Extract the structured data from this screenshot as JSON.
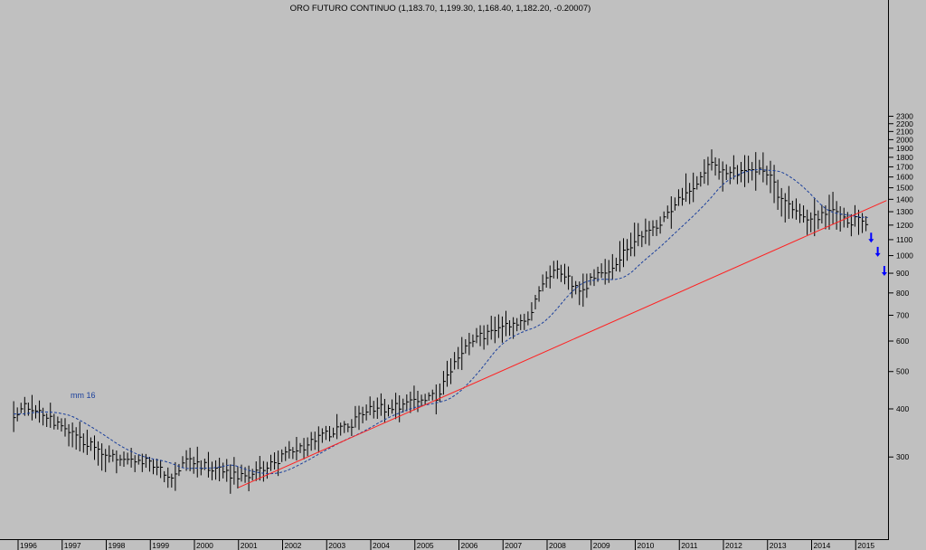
{
  "chart_data": {
    "type": "bar",
    "title": "ORO FUTURO CONTINUO (1,183.70, 1,199.30, 1,168.40, 1,182.20, -0.20007)",
    "y_scale": "log",
    "ylim": [
      230,
      2350
    ],
    "grid": false,
    "x_tick_labels": [
      "1996",
      "1997",
      "1998",
      "1999",
      "2000",
      "2001",
      "2002",
      "2003",
      "2004",
      "2005",
      "2006",
      "2007",
      "2008",
      "2009",
      "2010",
      "2011",
      "2012",
      "2013",
      "2014",
      "2015"
    ],
    "y_tick_labels": [
      "2300",
      "2200",
      "2100",
      "2000",
      "1900",
      "1800",
      "1700",
      "1600",
      "1500",
      "1400",
      "1300",
      "1200",
      "1100",
      "1000",
      "900",
      "800",
      "700",
      "600",
      "500",
      "400",
      "300"
    ],
    "annotations": {
      "moving_average_label": "mm 16"
    },
    "series": [
      {
        "kind": "monthly_hlc_bars",
        "color": "#000000",
        "anchors": [
          [
            1995.9,
            388
          ],
          [
            1996.1,
            405
          ],
          [
            1996.5,
            388
          ],
          [
            1997.0,
            360
          ],
          [
            1997.5,
            330
          ],
          [
            1998.0,
            300
          ],
          [
            1998.5,
            295
          ],
          [
            1999.0,
            290
          ],
          [
            1999.5,
            260
          ],
          [
            1999.8,
            300
          ],
          [
            2000.0,
            290
          ],
          [
            2000.5,
            280
          ],
          [
            2001.0,
            265
          ],
          [
            2001.5,
            275
          ],
          [
            2002.0,
            300
          ],
          [
            2002.5,
            320
          ],
          [
            2003.0,
            345
          ],
          [
            2003.5,
            360
          ],
          [
            2004.0,
            405
          ],
          [
            2004.5,
            400
          ],
          [
            2005.0,
            425
          ],
          [
            2005.5,
            430
          ],
          [
            2006.0,
            560
          ],
          [
            2006.5,
            620
          ],
          [
            2007.0,
            650
          ],
          [
            2007.5,
            670
          ],
          [
            2008.0,
            880
          ],
          [
            2008.2,
            930
          ],
          [
            2008.8,
            800
          ],
          [
            2009.0,
            880
          ],
          [
            2009.5,
            940
          ],
          [
            2010.0,
            1100
          ],
          [
            2010.5,
            1200
          ],
          [
            2011.0,
            1400
          ],
          [
            2011.5,
            1600
          ],
          [
            2011.7,
            1750
          ],
          [
            2012.0,
            1650
          ],
          [
            2012.5,
            1650
          ],
          [
            2012.8,
            1700
          ],
          [
            2013.0,
            1650
          ],
          [
            2013.3,
            1400
          ],
          [
            2013.6,
            1300
          ],
          [
            2014.0,
            1250
          ],
          [
            2014.5,
            1300
          ],
          [
            2014.9,
            1200
          ],
          [
            2015.0,
            1250
          ],
          [
            2015.3,
            1182
          ]
        ]
      },
      {
        "kind": "moving_average",
        "name": "mm 16",
        "color": "#1a3f9c",
        "lag_months": 8
      },
      {
        "kind": "trendline",
        "color": "#ff2020",
        "x": [
          2001.0,
          2015.7
        ],
        "y": [
          250,
          1390
        ]
      }
    ],
    "forecast_arrows": [
      {
        "x": 2015.35,
        "y": 1110
      },
      {
        "x": 2015.5,
        "y": 1020
      },
      {
        "x": 2015.65,
        "y": 910
      }
    ]
  }
}
